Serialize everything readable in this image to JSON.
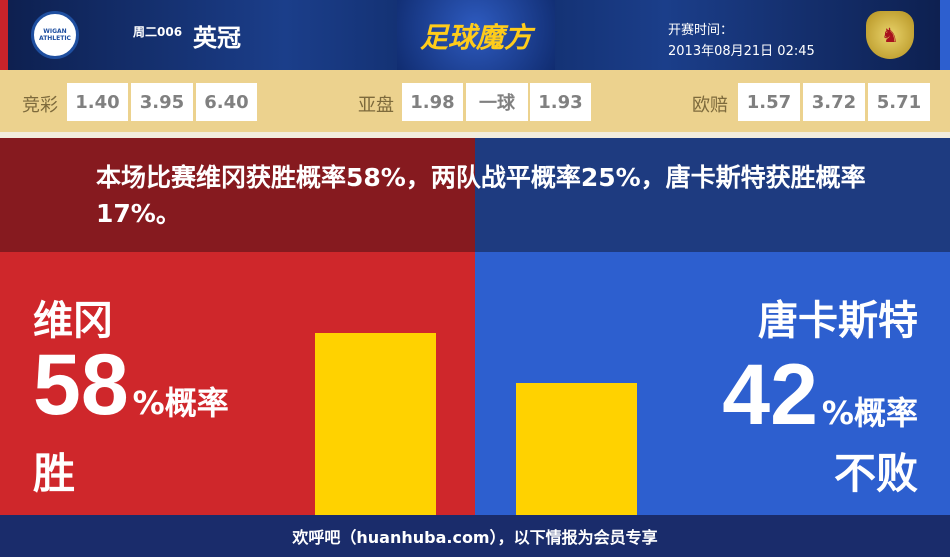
{
  "header": {
    "home_logo": "WIGAN ATHLETIC",
    "away_logo_icon": "doncaster-crest-icon",
    "match_no": "周二006",
    "league": "英冠",
    "brand": "足球魔方",
    "kickoff_label": "开赛时间：",
    "kickoff_time": "2013年08月21日 02:45"
  },
  "odds": {
    "jingcai": {
      "label": "竞彩",
      "values": [
        "1.40",
        "3.95",
        "6.40"
      ]
    },
    "asian": {
      "label": "亚盘",
      "values": [
        "1.98",
        "一球",
        "1.93"
      ]
    },
    "euro": {
      "label": "欧赔",
      "values": [
        "1.57",
        "3.72",
        "5.71"
      ]
    }
  },
  "summary": "本场比赛维冈获胜概率58%，两队战平概率25%，唐卡斯特获胜概率17%。",
  "home": {
    "name": "维冈",
    "percent": "58",
    "unit": "%概率",
    "outcome": "胜",
    "bar_value": 58,
    "color": "#cf272b"
  },
  "away": {
    "name": "唐卡斯特",
    "percent": "42",
    "unit": "%概率",
    "outcome": "不败",
    "bar_value": 42,
    "color": "#2d5fcf"
  },
  "bar_color": "#ffd200",
  "footer": "欢呼吧（huanhuba.com），以下情报为会员专享"
}
